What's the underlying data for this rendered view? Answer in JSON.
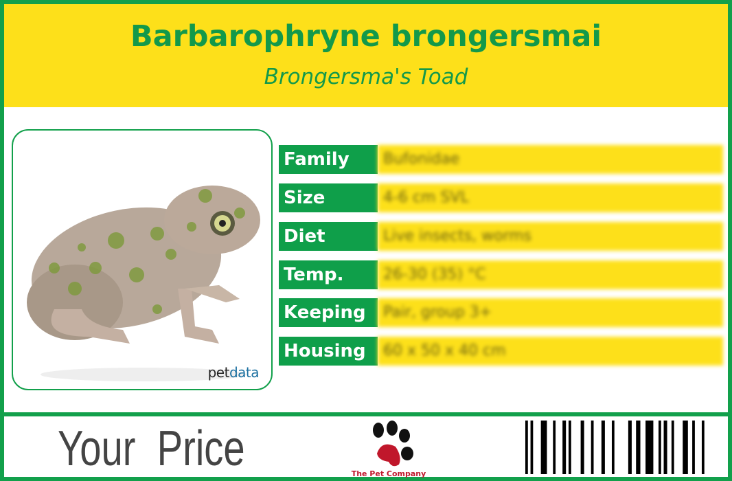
{
  "header": {
    "title": "Barbarophryne brongersmai",
    "subtitle": "Brongersma's Toad"
  },
  "photo": {
    "watermark_pet": "pet",
    "watermark_data": "data"
  },
  "facts": [
    {
      "label": "Family",
      "value": "Bufonidae"
    },
    {
      "label": "Size",
      "value": "4-6 cm SVL"
    },
    {
      "label": "Diet",
      "value": "Live insects, worms"
    },
    {
      "label": "Temp.",
      "value": "26-30 (35) °C"
    },
    {
      "label": "Keeping",
      "value": "Pair, group 3+"
    },
    {
      "label": "Housing",
      "value": "60 x 50 x 40 cm"
    }
  ],
  "footer": {
    "price_label": "Your Price",
    "logo_text": "The Pet Company"
  },
  "colors": {
    "green": "#12a04b",
    "yellow": "#fde01a",
    "logo_red": "#c0172b"
  }
}
